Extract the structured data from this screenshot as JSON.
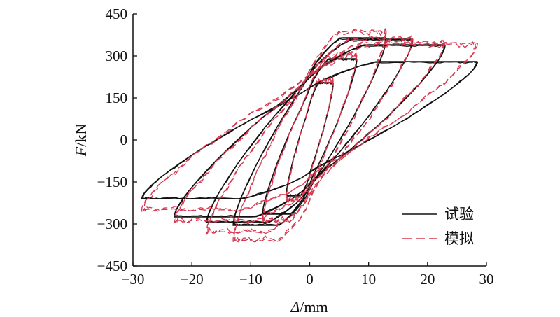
{
  "chart_data": {
    "type": "line",
    "title": "",
    "xlabel_symbol": "Δ",
    "xlabel_unit": "/mm",
    "ylabel_symbol": "F",
    "ylabel_unit": "/kN",
    "xlim": [
      -30,
      30
    ],
    "ylim": [
      -450,
      450
    ],
    "x_ticks": [
      -30,
      -20,
      -10,
      0,
      10,
      20,
      30
    ],
    "y_ticks": [
      -450,
      -300,
      -150,
      0,
      150,
      300,
      450
    ],
    "x_tick_labels": [
      "−30",
      "−20",
      "−10",
      "0",
      "10",
      "20",
      "30"
    ],
    "y_tick_labels": [
      "−450",
      "−300",
      "−150",
      "0",
      "150",
      "300",
      "450"
    ],
    "grid": false,
    "legend_position": "bottom-right",
    "series": [
      {
        "name": "试验",
        "color": "#111111",
        "style": "solid",
        "loops": [
          {
            "dmax": 4,
            "fmax": 205,
            "dmin": -4,
            "fmin": -200
          },
          {
            "dmax": 8,
            "fmax": 290,
            "dmin": -8,
            "fmin": -265
          },
          {
            "dmax": 13,
            "fmax": 365,
            "dmin": -13,
            "fmin": -305
          },
          {
            "dmax": 17.5,
            "fmax": 360,
            "dmin": -17.5,
            "fmin": -295
          },
          {
            "dmax": 23,
            "fmax": 340,
            "dmin": -23,
            "fmin": -275
          },
          {
            "dmax": 28.5,
            "fmax": 280,
            "dmin": -28.5,
            "fmin": -210
          }
        ]
      },
      {
        "name": "模拟",
        "color": "#d6384f",
        "style": "dashed",
        "loops": [
          {
            "dmax": 4,
            "fmax": 215,
            "dmin": -4,
            "fmin": -215
          },
          {
            "dmax": 8,
            "fmax": 305,
            "dmin": -8,
            "fmin": -290
          },
          {
            "dmax": 13,
            "fmax": 390,
            "dmin": -13,
            "fmin": -360
          },
          {
            "dmax": 17.5,
            "fmax": 365,
            "dmin": -17.5,
            "fmin": -330
          },
          {
            "dmax": 23,
            "fmax": 350,
            "dmin": -23,
            "fmin": -290
          },
          {
            "dmax": 28.5,
            "fmax": 345,
            "dmin": -28.5,
            "fmin": -250
          }
        ]
      }
    ]
  }
}
